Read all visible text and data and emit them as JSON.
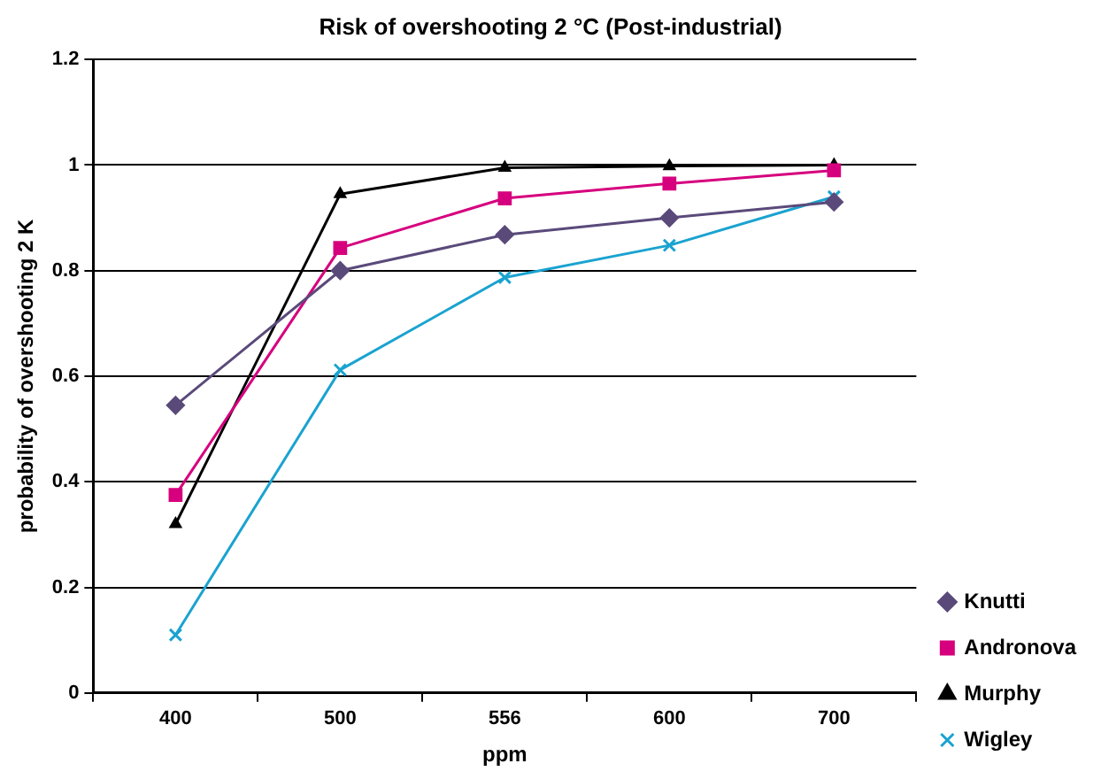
{
  "chart_data": {
    "type": "line",
    "title": "Risk of overshooting 2 °C (Post-industrial)",
    "xlabel": "ppm",
    "ylabel": "probability of overshooting 2 K",
    "categories": [
      "400",
      "500",
      "556",
      "600",
      "700"
    ],
    "series": [
      {
        "name": "Knutti",
        "color": "#5a4a7a",
        "marker": "diamond",
        "values": [
          0.545,
          0.8,
          0.868,
          0.9,
          0.93
        ]
      },
      {
        "name": "Andronova",
        "color": "#d6007e",
        "marker": "square",
        "values": [
          0.375,
          0.843,
          0.937,
          0.965,
          0.99
        ]
      },
      {
        "name": "Murphy",
        "color": "#000000",
        "marker": "triangle",
        "values": [
          0.32,
          0.945,
          0.995,
          0.998,
          1.0
        ]
      },
      {
        "name": "Wigley",
        "color": "#1aa3d0",
        "marker": "cross",
        "values": [
          0.11,
          0.612,
          0.787,
          0.848,
          0.94
        ]
      }
    ],
    "ylim": [
      0,
      1.2
    ],
    "yticks": [
      0,
      0.2,
      0.4,
      0.6,
      0.8,
      1,
      1.2
    ],
    "grid": "y",
    "legend": "bottom right",
    "line_style": "solid"
  }
}
